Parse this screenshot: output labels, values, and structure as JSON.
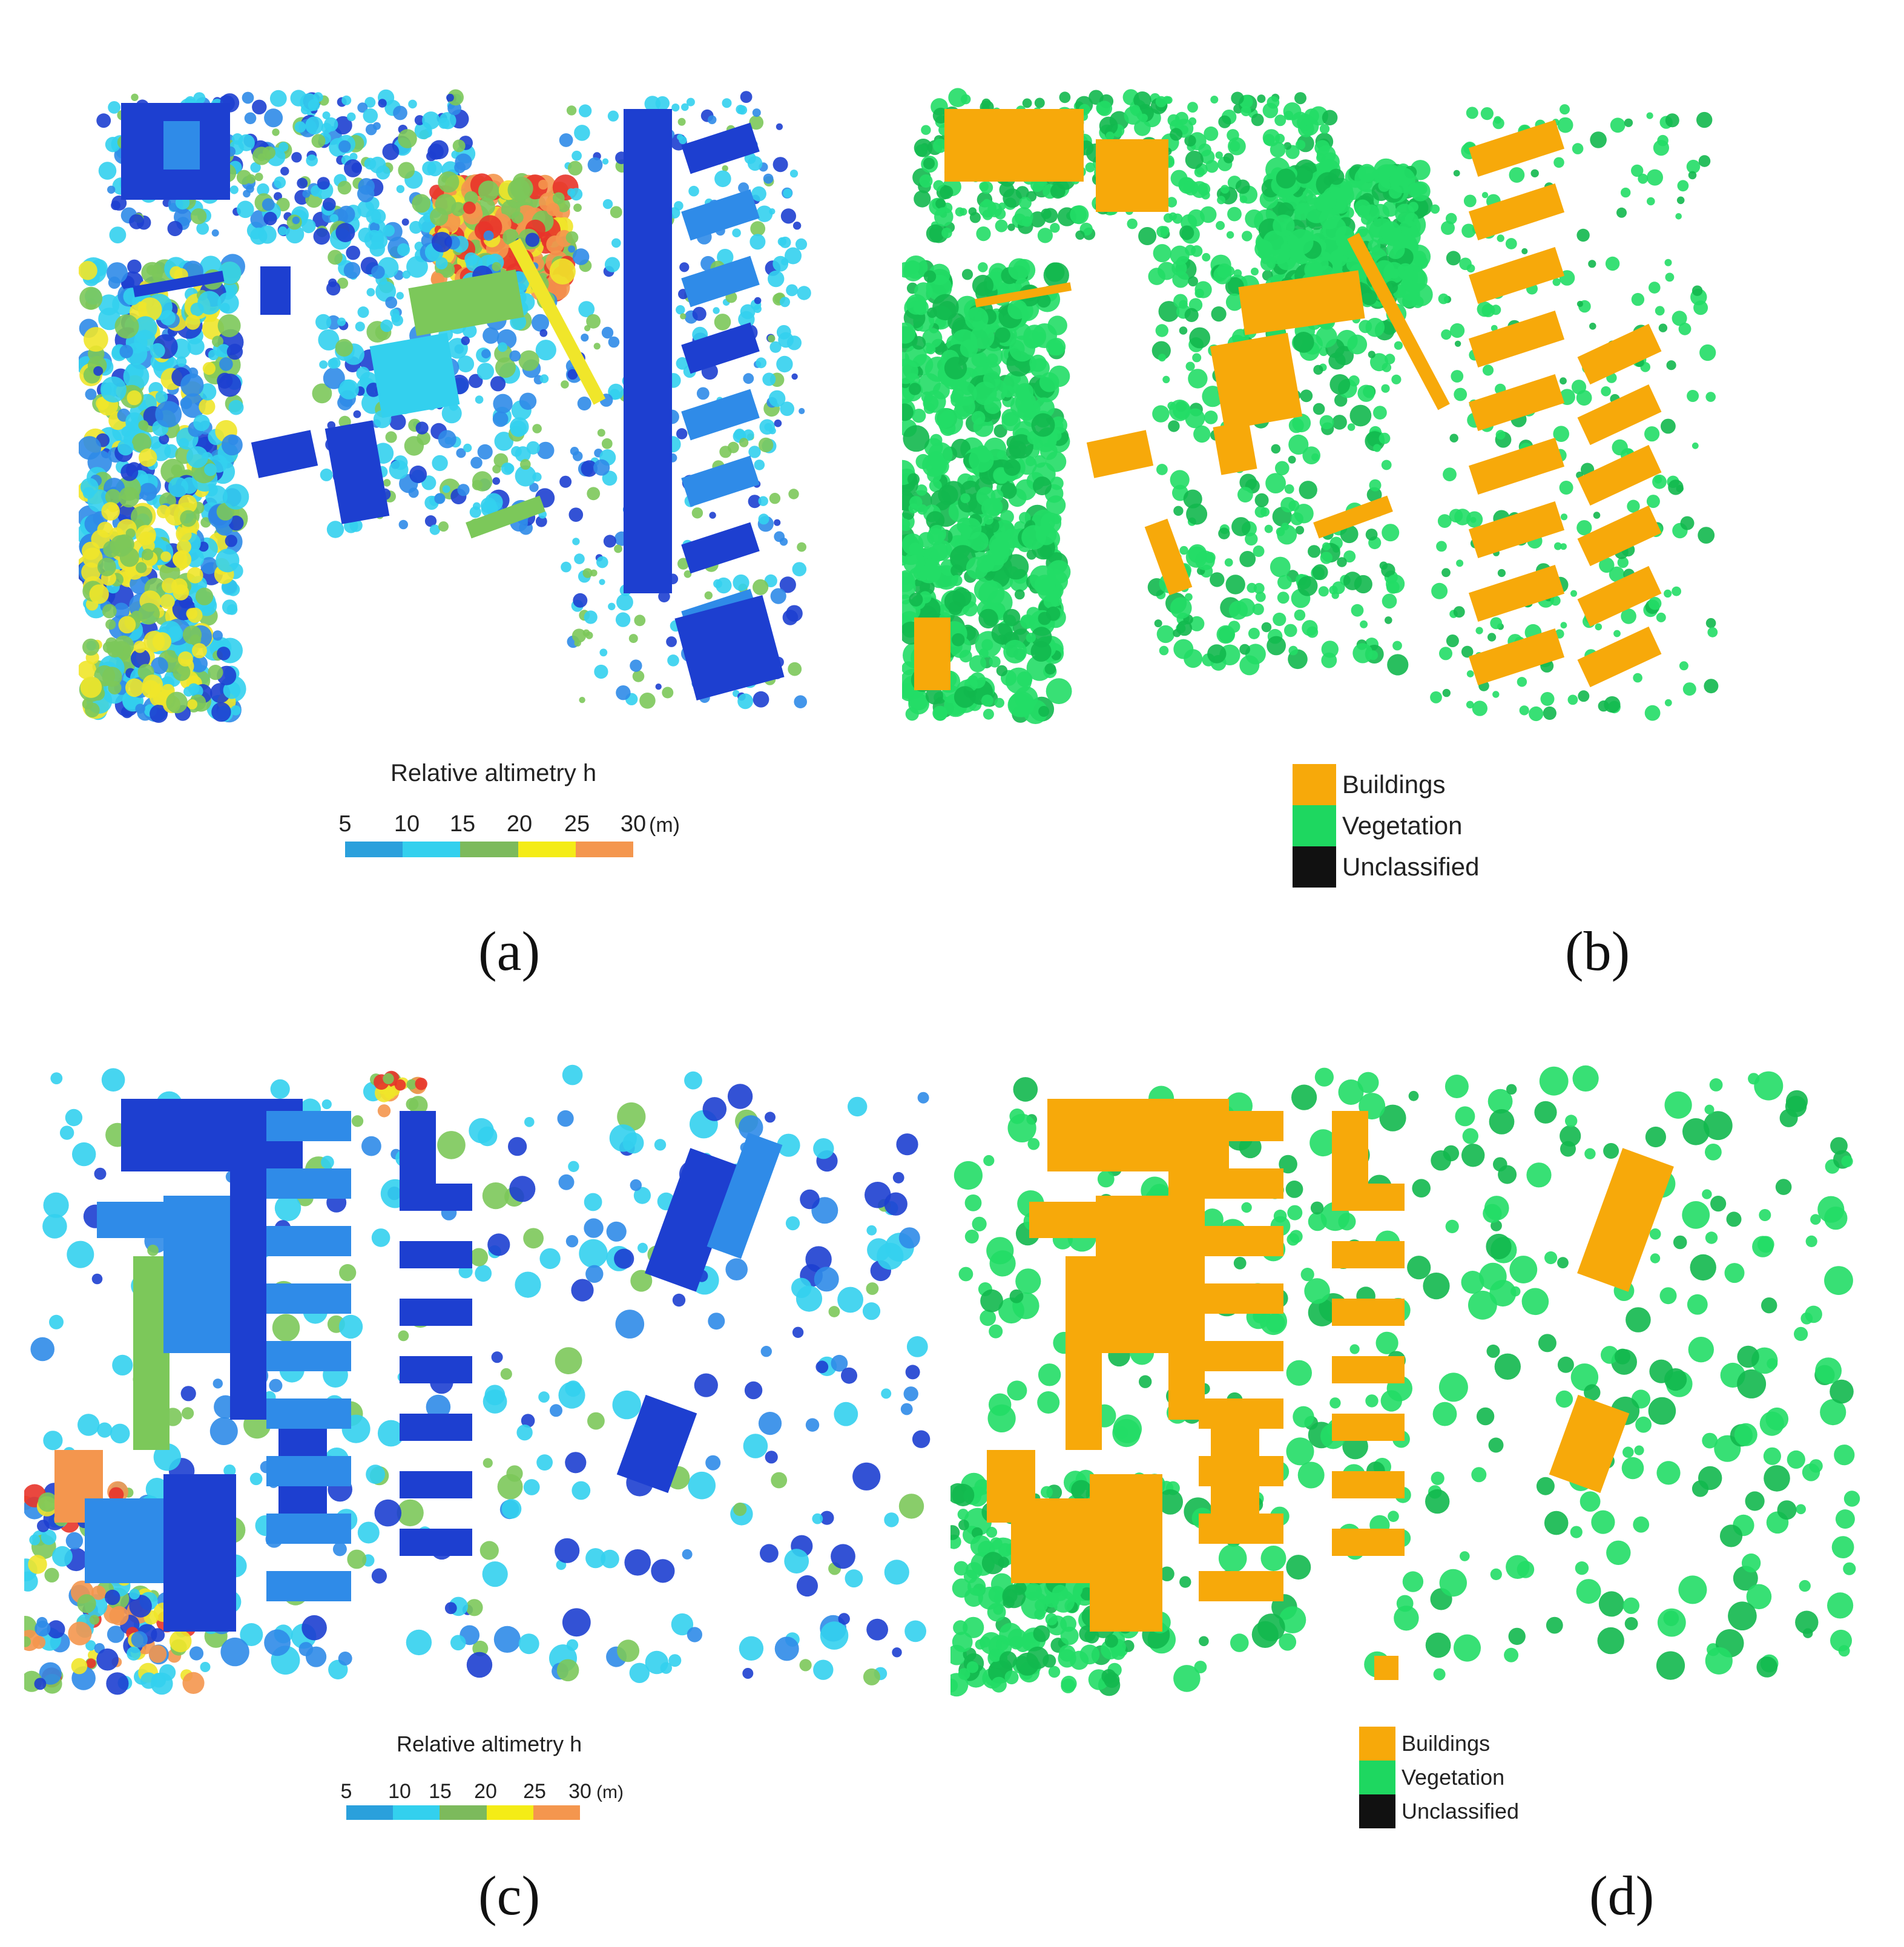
{
  "panels": {
    "a": {
      "caption": "(a)",
      "kind": "altimetry"
    },
    "b": {
      "caption": "(b)",
      "kind": "classification"
    },
    "c": {
      "caption": "(c)",
      "kind": "altimetry"
    },
    "d": {
      "caption": "(d)",
      "kind": "classification"
    }
  },
  "altimetry_legend": {
    "title": "Relative altimetry h",
    "ticks": [
      "5",
      "10",
      "15",
      "20",
      "25",
      "30"
    ],
    "unit": "(m)",
    "ramp_colors": [
      "#2aa0dc",
      "#33d0ee",
      "#7cba5c",
      "#f4ec16",
      "#f4964e"
    ]
  },
  "classification_legend": {
    "items": [
      {
        "label": "Buildings",
        "color": "#f7a90a"
      },
      {
        "label": "Vegetation",
        "color": "#1ed760"
      },
      {
        "label": "Unclassified",
        "color": "#111111"
      }
    ]
  },
  "colors": {
    "building": "#f7a90a",
    "vegetation": "#22dd66",
    "vegetation_dark": "#12b84e",
    "height_low": "#1d3fd0",
    "height_mid": "#2f8be8",
    "height_cyan": "#33d0ee",
    "height_green": "#7cc85a",
    "height_yellow": "#f0e62a",
    "height_orange": "#f4964e",
    "height_red": "#e8342a"
  }
}
